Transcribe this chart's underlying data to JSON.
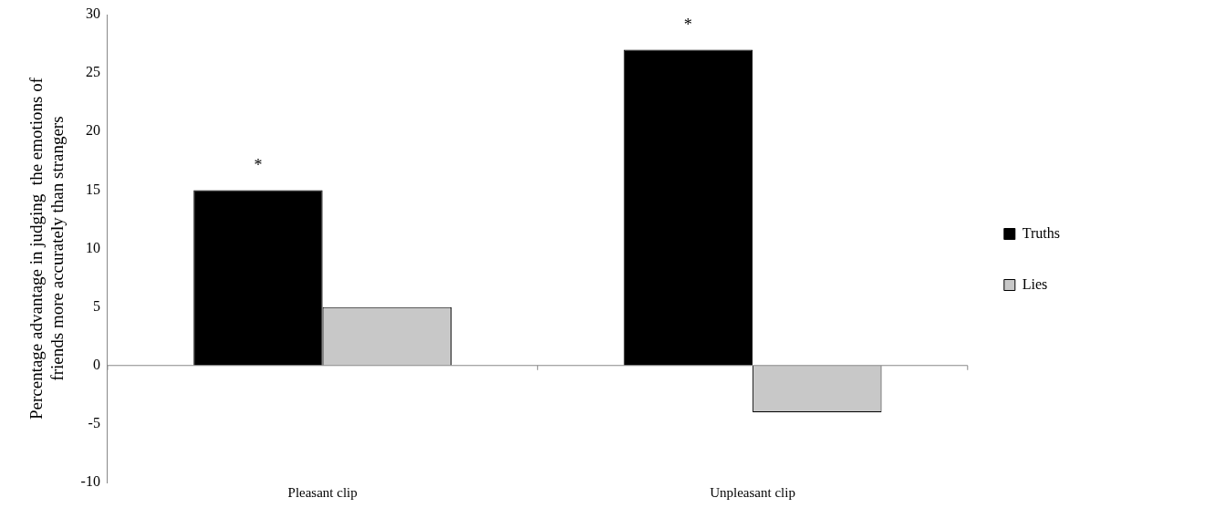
{
  "chart_data": {
    "type": "bar",
    "ylabel": "Percentage advantage in judging  the emotions of\nfriends more accurately than strangers",
    "categories": [
      "Pleasant clip",
      "Unpleasant clip"
    ],
    "series": [
      {
        "name": "Truths",
        "color": "#000000",
        "values": [
          15,
          27
        ]
      },
      {
        "name": "Lies",
        "color": "#c8c8c8",
        "values": [
          5,
          -4
        ]
      }
    ],
    "ylim": [
      -10,
      30
    ],
    "yticks": [
      -10,
      -5,
      0,
      5,
      10,
      15,
      20,
      25,
      30
    ],
    "grid": false,
    "legend": "right",
    "ref_lines": [
      {
        "axis": "y",
        "value": 0,
        "color": "#888888"
      }
    ],
    "annotations": [
      "*",
      "*"
    ]
  }
}
